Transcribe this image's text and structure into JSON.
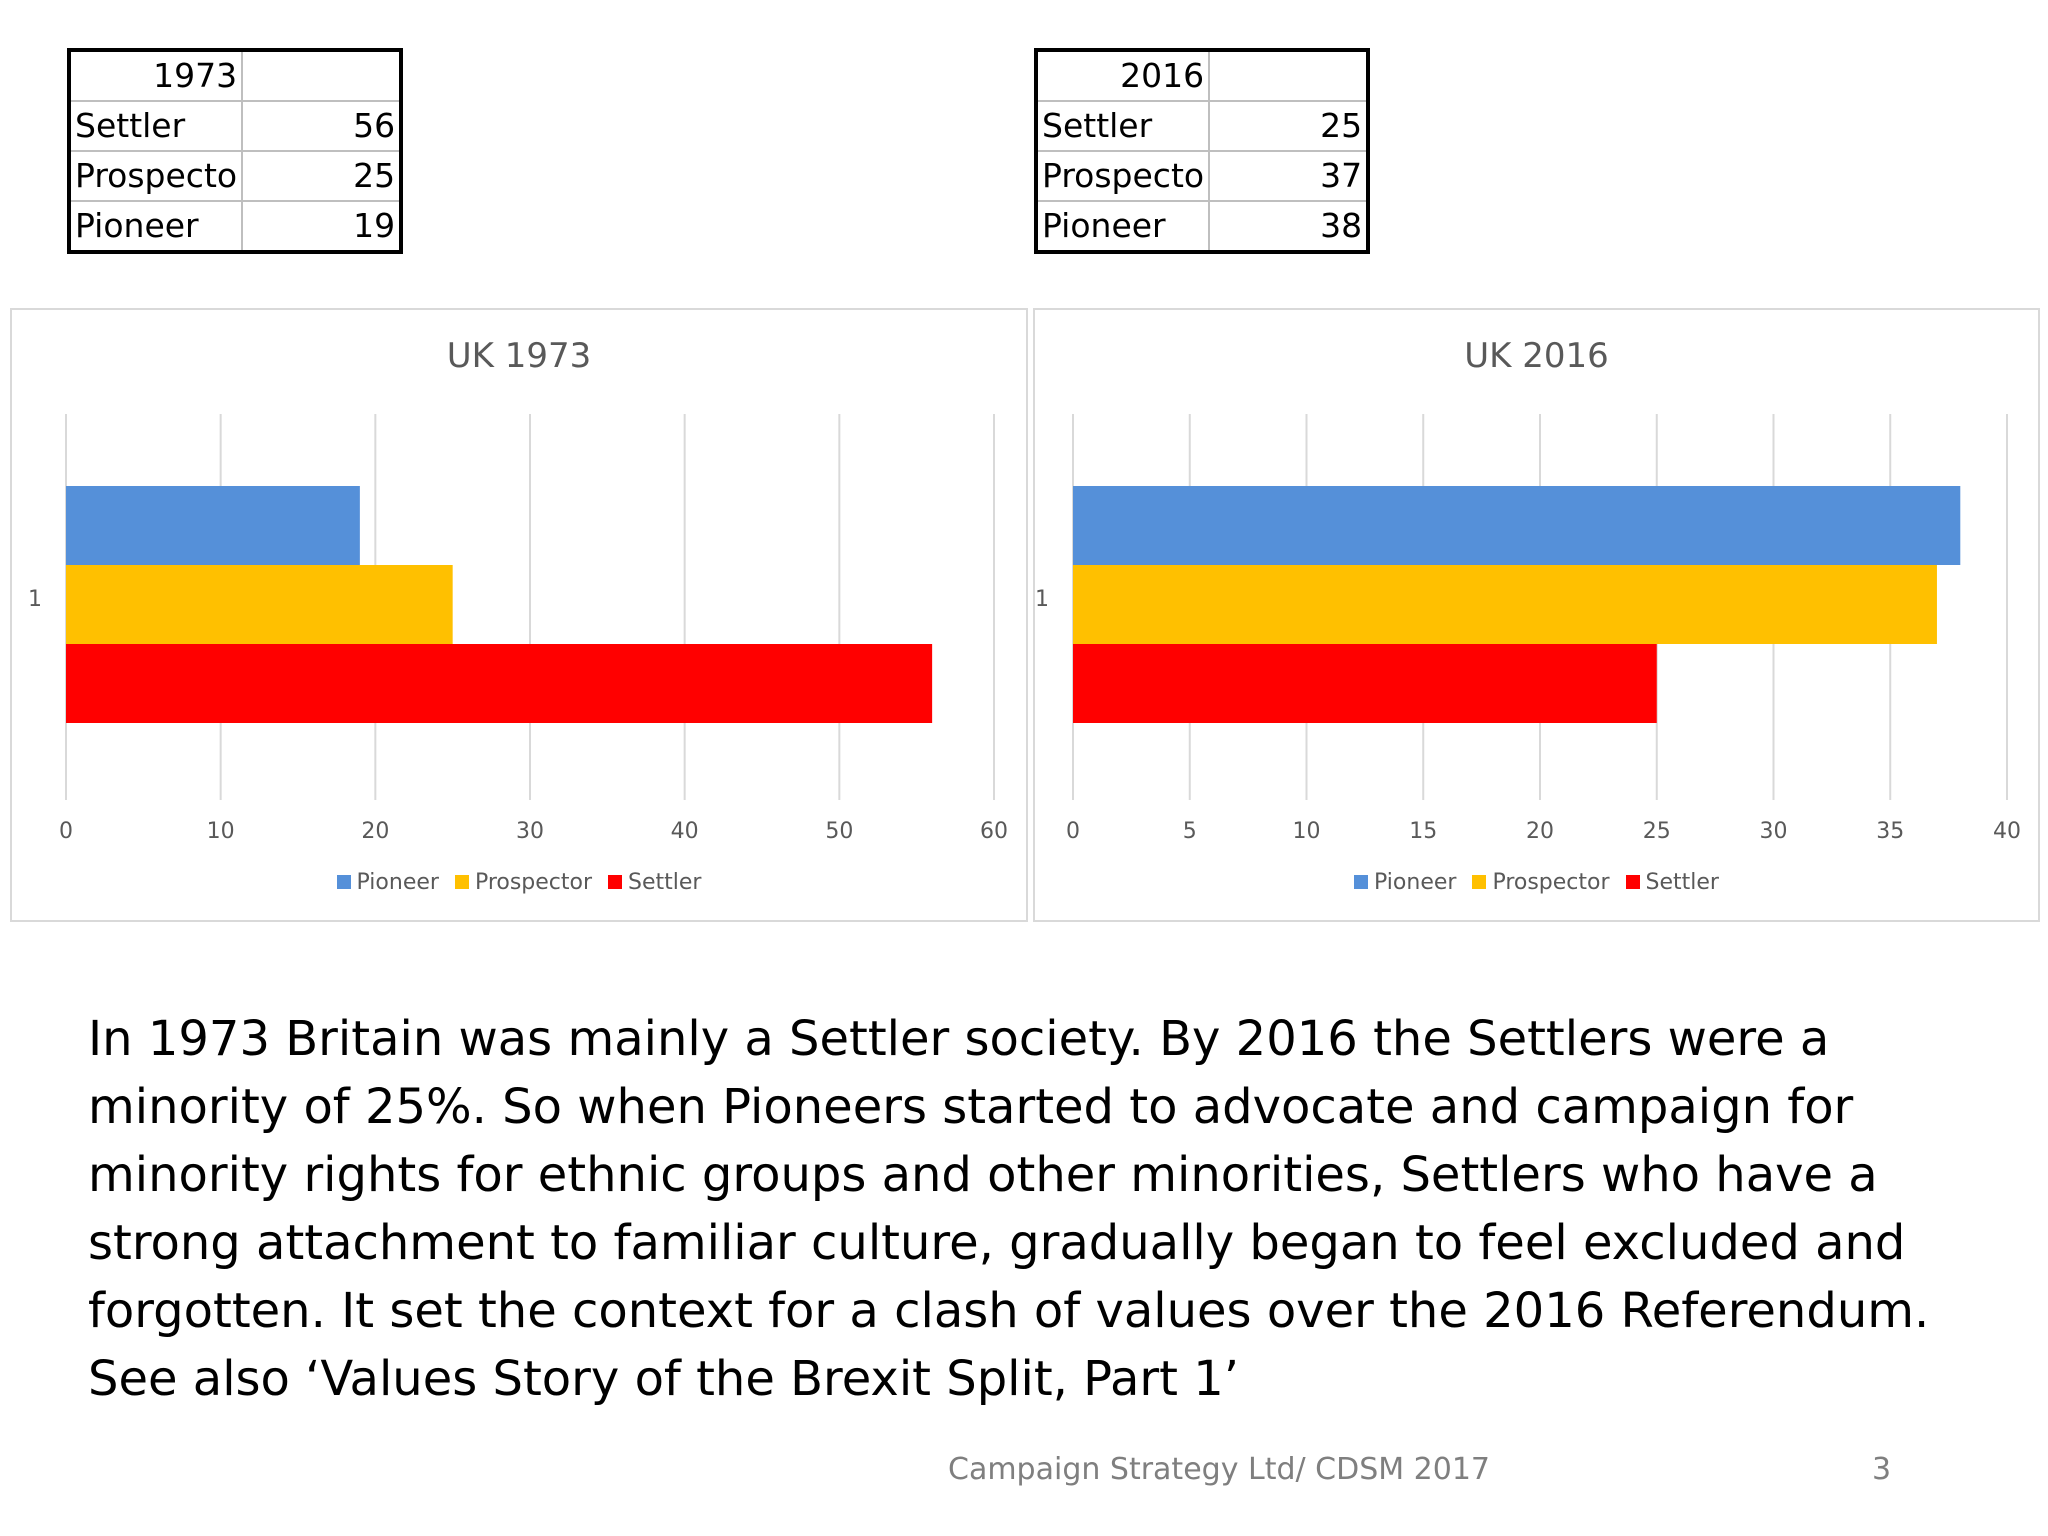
{
  "tables": [
    {
      "year": "1973",
      "rows": [
        {
          "label": "Settler",
          "value": "56"
        },
        {
          "label": "Prospecto",
          "value": "25"
        },
        {
          "label": "Pioneer",
          "value": "19"
        }
      ]
    },
    {
      "year": "2016",
      "rows": [
        {
          "label": "Settler",
          "value": "25"
        },
        {
          "label": "Prospecto",
          "value": "37"
        },
        {
          "label": "Pioneer",
          "value": "38"
        }
      ]
    }
  ],
  "chart_data": [
    {
      "type": "bar",
      "orientation": "horizontal",
      "title": "UK 1973",
      "categories": [
        "1"
      ],
      "series": [
        {
          "name": "Pioneer",
          "values": [
            19
          ],
          "color": "#5590d9"
        },
        {
          "name": "Prospector",
          "values": [
            25
          ],
          "color": "#ffc000"
        },
        {
          "name": "Settler",
          "values": [
            56
          ],
          "color": "#ff0000"
        }
      ],
      "xlim": [
        0,
        60
      ],
      "xticks": [
        "0",
        "10",
        "20",
        "30",
        "40",
        "50",
        "60"
      ],
      "legend": "bottom",
      "grid": true
    },
    {
      "type": "bar",
      "orientation": "horizontal",
      "title": "UK 2016",
      "categories": [
        "1"
      ],
      "series": [
        {
          "name": "Pioneer",
          "values": [
            38
          ],
          "color": "#5590d9"
        },
        {
          "name": "Prospector",
          "values": [
            37
          ],
          "color": "#ffc000"
        },
        {
          "name": "Settler",
          "values": [
            25
          ],
          "color": "#ff0000"
        }
      ],
      "xlim": [
        0,
        40
      ],
      "xticks": [
        "0",
        "5",
        "10",
        "15",
        "20",
        "25",
        "30",
        "35",
        "40"
      ],
      "legend": "bottom",
      "grid": true
    }
  ],
  "body_text": "In 1973 Britain was mainly a Settler society.  By 2016 the Settlers were a minority of 25%.  So when Pioneers started to advocate and campaign for minority rights for ethnic groups and other minorities, Settlers who have a strong attachment to familiar culture,  gradually began to feel excluded and forgotten.  It set the context for a clash of values over the 2016 Referendum. See also ‘Values Story of the Brexit Split, Part 1’",
  "footer": {
    "credit": "Campaign Strategy Ltd/ CDSM 2017",
    "page": "3"
  }
}
